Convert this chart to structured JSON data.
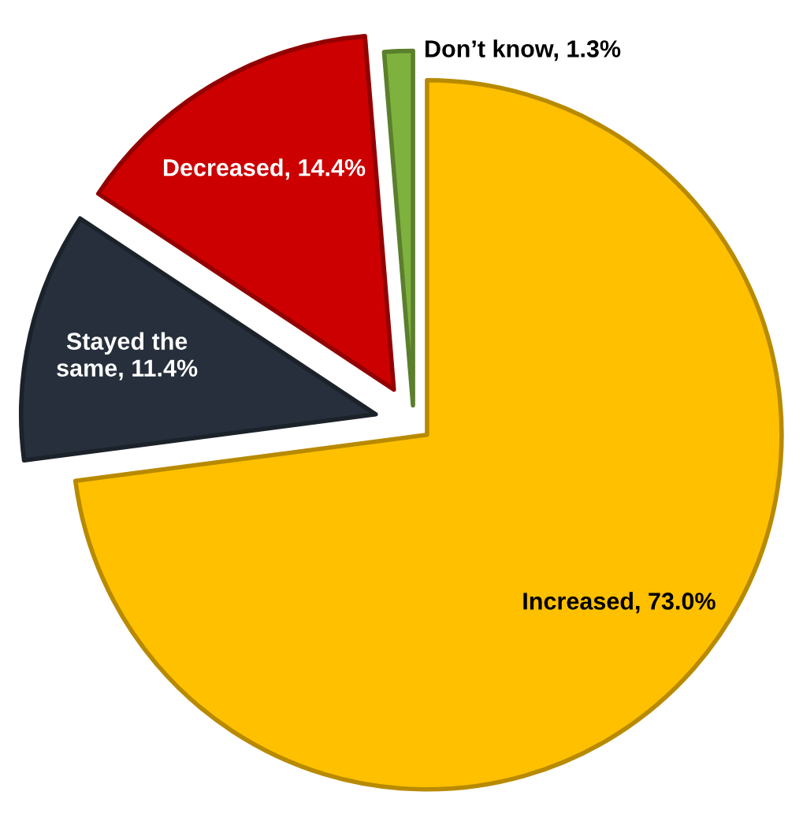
{
  "chart_data": {
    "type": "pie",
    "categories": [
      "Increased",
      "Stayed the same",
      "Decreased",
      "Don’t know"
    ],
    "values": [
      73.0,
      11.4,
      14.4,
      1.3
    ],
    "colors": [
      "#ffc000",
      "#262f3b",
      "#cc0000",
      "#7fb13f"
    ],
    "value_labels": [
      "73.0%",
      "11.4%",
      "14.4%",
      "1.3%"
    ]
  }
}
